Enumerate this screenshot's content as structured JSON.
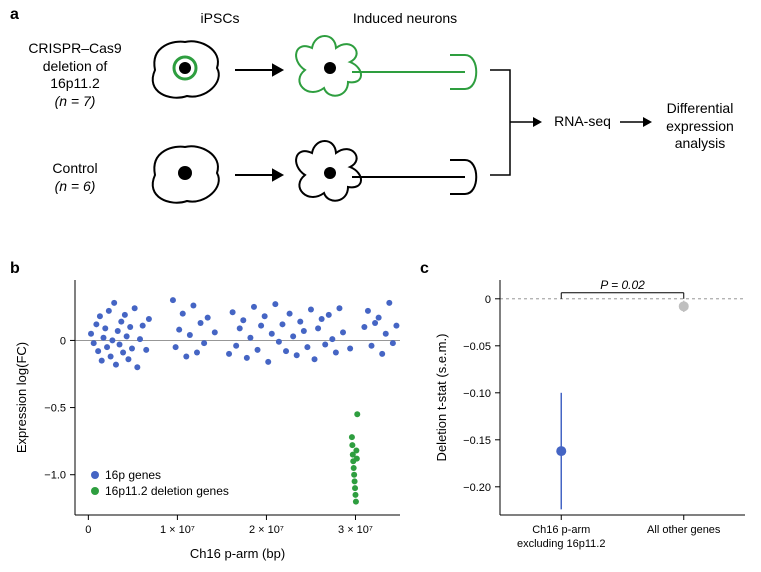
{
  "panel_labels": {
    "a": "a",
    "b": "b",
    "c": "c"
  },
  "panel_a": {
    "col_headers": {
      "ipsc": "iPSCs",
      "neurons": "Induced neurons"
    },
    "row_labels": {
      "deletion_line1": "CRISPR–Cas9",
      "deletion_line2": "deletion of",
      "deletion_line3": "16p11.2",
      "deletion_n": "(n = 7)",
      "control": "Control",
      "control_n": "(n = 6)"
    },
    "arrows_to": "RNA-seq",
    "final_line1": "Differential",
    "final_line2": "expression",
    "final_line3": "analysis",
    "colors": {
      "deletion": "#2e9e3f",
      "control": "#000000",
      "stroke": "#000000"
    }
  },
  "panel_b": {
    "type": "scatter",
    "x_label": "Ch16 p-arm (bp)",
    "y_label": "Expression log(FC)",
    "x_ticks": [
      {
        "val": 0,
        "label": "0"
      },
      {
        "val": 10000000,
        "label": "1 × 10⁷"
      },
      {
        "val": 20000000,
        "label": "2 × 10⁷"
      },
      {
        "val": 30000000,
        "label": "3 × 10⁷"
      }
    ],
    "y_ticks": [
      {
        "val": 0,
        "label": "0"
      },
      {
        "val": -0.5,
        "label": "−0.5"
      },
      {
        "val": -1.0,
        "label": "−1.0"
      }
    ],
    "xlim": [
      -1500000,
      35000000
    ],
    "ylim": [
      -1.3,
      0.45
    ],
    "colors": {
      "blue": "#4565c4",
      "green": "#2e9e3f",
      "axis": "#000000",
      "zero_line": "#888888"
    },
    "marker_radius": 3,
    "legend": [
      {
        "color": "#4565c4",
        "label": "16p genes"
      },
      {
        "color": "#2e9e3f",
        "label": "16p11.2 deletion genes"
      }
    ],
    "points_blue": [
      [
        300000,
        0.05
      ],
      [
        600000,
        -0.02
      ],
      [
        900000,
        0.12
      ],
      [
        1100000,
        -0.08
      ],
      [
        1300000,
        0.18
      ],
      [
        1500000,
        -0.15
      ],
      [
        1700000,
        0.02
      ],
      [
        1900000,
        0.09
      ],
      [
        2100000,
        -0.05
      ],
      [
        2300000,
        0.22
      ],
      [
        2500000,
        -0.12
      ],
      [
        2700000,
        0.0
      ],
      [
        2900000,
        0.28
      ],
      [
        3100000,
        -0.18
      ],
      [
        3300000,
        0.07
      ],
      [
        3500000,
        -0.03
      ],
      [
        3700000,
        0.14
      ],
      [
        3900000,
        -0.09
      ],
      [
        4100000,
        0.19
      ],
      [
        4300000,
        0.03
      ],
      [
        4500000,
        -0.14
      ],
      [
        4700000,
        0.1
      ],
      [
        4900000,
        -0.06
      ],
      [
        5200000,
        0.24
      ],
      [
        5500000,
        -0.2
      ],
      [
        5800000,
        0.01
      ],
      [
        6100000,
        0.11
      ],
      [
        6500000,
        -0.07
      ],
      [
        6800000,
        0.16
      ],
      [
        9500000,
        0.3
      ],
      [
        9800000,
        -0.05
      ],
      [
        10200000,
        0.08
      ],
      [
        10600000,
        0.2
      ],
      [
        11000000,
        -0.12
      ],
      [
        11400000,
        0.04
      ],
      [
        11800000,
        0.26
      ],
      [
        12200000,
        -0.09
      ],
      [
        12600000,
        0.13
      ],
      [
        13000000,
        -0.02
      ],
      [
        13400000,
        0.17
      ],
      [
        14200000,
        0.06
      ],
      [
        15800000,
        -0.1
      ],
      [
        16200000,
        0.21
      ],
      [
        16600000,
        -0.04
      ],
      [
        17000000,
        0.09
      ],
      [
        17400000,
        0.15
      ],
      [
        17800000,
        -0.13
      ],
      [
        18200000,
        0.02
      ],
      [
        18600000,
        0.25
      ],
      [
        19000000,
        -0.07
      ],
      [
        19400000,
        0.11
      ],
      [
        19800000,
        0.18
      ],
      [
        20200000,
        -0.16
      ],
      [
        20600000,
        0.05
      ],
      [
        21000000,
        0.27
      ],
      [
        21400000,
        -0.01
      ],
      [
        21800000,
        0.12
      ],
      [
        22200000,
        -0.08
      ],
      [
        22600000,
        0.2
      ],
      [
        23000000,
        0.03
      ],
      [
        23400000,
        -0.11
      ],
      [
        23800000,
        0.14
      ],
      [
        24200000,
        0.07
      ],
      [
        24600000,
        -0.05
      ],
      [
        25000000,
        0.23
      ],
      [
        25400000,
        -0.14
      ],
      [
        25800000,
        0.09
      ],
      [
        26200000,
        0.16
      ],
      [
        26600000,
        -0.03
      ],
      [
        27000000,
        0.19
      ],
      [
        27400000,
        0.01
      ],
      [
        27800000,
        -0.09
      ],
      [
        28200000,
        0.24
      ],
      [
        28600000,
        0.06
      ],
      [
        29400000,
        -0.06
      ],
      [
        31000000,
        0.1
      ],
      [
        31400000,
        0.22
      ],
      [
        31800000,
        -0.04
      ],
      [
        32200000,
        0.13
      ],
      [
        32600000,
        0.17
      ],
      [
        33000000,
        -0.1
      ],
      [
        33400000,
        0.05
      ],
      [
        33800000,
        0.28
      ],
      [
        34200000,
        -0.02
      ],
      [
        34600000,
        0.11
      ]
    ],
    "points_green": [
      [
        29600000,
        -0.72
      ],
      [
        29650000,
        -0.78
      ],
      [
        29700000,
        -0.85
      ],
      [
        29750000,
        -0.9
      ],
      [
        29800000,
        -0.95
      ],
      [
        29850000,
        -1.0
      ],
      [
        29900000,
        -1.05
      ],
      [
        29950000,
        -1.1
      ],
      [
        30000000,
        -1.15
      ],
      [
        30050000,
        -1.2
      ],
      [
        30100000,
        -0.82
      ],
      [
        30150000,
        -0.88
      ],
      [
        30200000,
        -0.55
      ]
    ]
  },
  "panel_c": {
    "type": "point-range",
    "y_label": "Deletion t-stat (s.e.m.)",
    "p_value_label": "P = 0.02",
    "y_ticks": [
      {
        "val": 0,
        "label": "0"
      },
      {
        "val": -0.05,
        "label": "−0.05"
      },
      {
        "val": -0.1,
        "label": "−0.10"
      },
      {
        "val": -0.15,
        "label": "−0.15"
      },
      {
        "val": -0.2,
        "label": "−0.20"
      }
    ],
    "ylim": [
      -0.23,
      0.02
    ],
    "categories": [
      {
        "label_line1": "Ch16 p-arm",
        "label_line2": "excluding 16p11.2",
        "mean": -0.162,
        "sem": 0.062,
        "color": "#4565c4"
      },
      {
        "label_line1": "All other genes",
        "label_line2": "",
        "mean": -0.008,
        "sem": 0.006,
        "color": "#bfbfbf"
      }
    ],
    "colors": {
      "axis": "#000000",
      "zero_line": "#888888"
    },
    "marker_radius": 5
  }
}
